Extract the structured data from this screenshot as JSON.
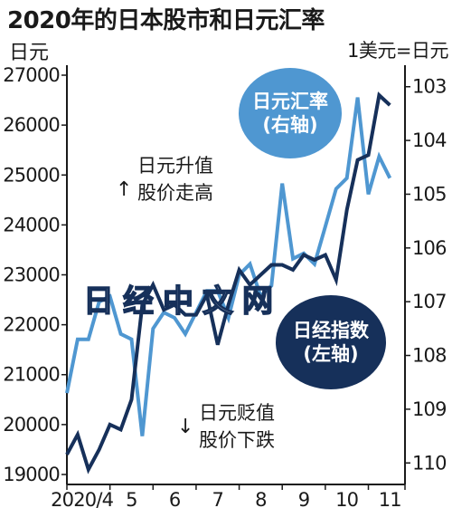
{
  "title": "2020年的日本股市和日元汇率",
  "left_unit": "日元",
  "right_unit": "1美元=日元",
  "badges": {
    "yen_line1": "日元汇率",
    "yen_line2": "(右轴)",
    "nikkei_line1": "日经指数",
    "nikkei_line2": "(左轴)"
  },
  "annotations": {
    "up_line1": "日元升值",
    "up_line2": "股价走高",
    "down_line1": "日元贬值",
    "down_line2": "股价下跌",
    "up_arrow": "↑",
    "down_arrow": "↓"
  },
  "watermark": "日经中文网",
  "colors": {
    "nikkei": "#16305a",
    "yen": "#4f97d1",
    "axis": "#1a1a1a"
  },
  "chart_data": {
    "type": "line",
    "title": "2020年的日本股市和日元汇率",
    "x_ticks": [
      "2020/4",
      "5",
      "6",
      "7",
      "8",
      "9",
      "10",
      "11"
    ],
    "y_left": {
      "label": "日元",
      "ticks": [
        19000,
        20000,
        21000,
        22000,
        23000,
        24000,
        25000,
        26000,
        27000
      ],
      "range": [
        18800,
        27200
      ]
    },
    "y_right": {
      "label": "1美元=日元",
      "ticks": [
        103,
        104,
        105,
        106,
        107,
        108,
        109,
        110
      ],
      "range": [
        110.4,
        102.6
      ],
      "inverted": true
    },
    "series": [
      {
        "name": "日经指数",
        "axis": "left",
        "x": [
          4.0,
          4.25,
          4.5,
          4.75,
          5.0,
          5.25,
          5.5,
          5.75,
          6.0,
          6.25,
          6.5,
          6.75,
          7.0,
          7.25,
          7.5,
          7.75,
          8.0,
          8.25,
          8.5,
          8.75,
          9.0,
          9.25,
          9.5,
          9.75,
          10.0,
          10.25,
          10.5,
          10.75,
          11.0,
          11.25,
          11.5
        ],
        "values": [
          19400,
          19800,
          19100,
          19500,
          20000,
          19900,
          20500,
          22400,
          22800,
          22300,
          22400,
          22200,
          22200,
          22600,
          21600,
          22400,
          23100,
          22800,
          23000,
          23200,
          23200,
          23100,
          23400,
          23300,
          23400,
          22900,
          24300,
          25300,
          25400,
          26600,
          26400
        ]
      },
      {
        "name": "日元汇率",
        "axis": "right",
        "x": [
          4.0,
          4.25,
          4.5,
          4.75,
          5.0,
          5.25,
          5.5,
          5.75,
          6.0,
          6.25,
          6.5,
          6.75,
          7.0,
          7.25,
          7.5,
          7.75,
          8.0,
          8.25,
          8.5,
          8.75,
          9.0,
          9.25,
          9.5,
          9.75,
          10.0,
          10.25,
          10.5,
          10.75,
          11.0,
          11.25,
          11.5
        ],
        "values": [
          108.7,
          107.7,
          107.7,
          107.0,
          106.9,
          107.6,
          107.7,
          109.5,
          107.5,
          107.2,
          107.3,
          107.6,
          107.2,
          106.8,
          106.8,
          107.3,
          106.5,
          106.3,
          106.9,
          106.7,
          104.8,
          106.2,
          106.1,
          106.3,
          105.6,
          104.9,
          104.7,
          103.2,
          105.0,
          104.3,
          104.7
        ]
      }
    ]
  }
}
